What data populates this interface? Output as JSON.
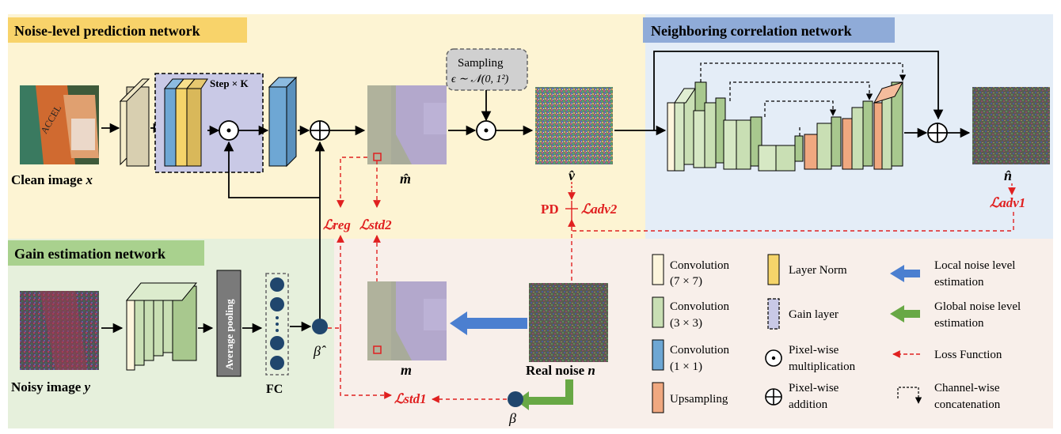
{
  "sections": {
    "noise_level": "Noise-level prediction network",
    "neighboring": "Neighboring correlation network",
    "gain": "Gain estimation network"
  },
  "labels": {
    "step_k": "Step × K",
    "clean_image": "Clean image",
    "clean_var": "x",
    "noisy_image": "Noisy image",
    "noisy_var": "y",
    "m_hat": "m̂",
    "v_hat": "v̂",
    "n_hat": "n̂",
    "m": "m",
    "real_noise": "Real noise",
    "real_noise_var": "n",
    "beta_hat": "β̂",
    "beta": "β",
    "fc": "FC",
    "avg_pool": "Average pooling",
    "sampling_title": "Sampling",
    "sampling_formula": "ϵ ∼ 𝒩(0, 1²)",
    "pd": "PD",
    "l_adv2": "ℒadv2",
    "l_adv1": "ℒadv1",
    "l_reg": "ℒreg",
    "l_std2": "ℒstd2",
    "l_std1": "ℒstd1"
  },
  "legend": {
    "conv7_a": "Convolution",
    "conv7_b": "(7 × 7)",
    "conv3_a": "Convolution",
    "conv3_b": "(3 × 3)",
    "conv1_a": "Convolution",
    "conv1_b": "(1 × 1)",
    "upsampling": "Upsampling",
    "layer_norm": "Layer Norm",
    "gain_layer": "Gain layer",
    "pixel_mult_a": "Pixel-wise",
    "pixel_mult_b": "multiplication",
    "pixel_add_a": "Pixel-wise",
    "pixel_add_b": "addition",
    "local_a": "Local noise level",
    "local_b": "estimation",
    "global_a": "Global noise level",
    "global_b": "estimation",
    "loss": "Loss Function",
    "concat_a": "Channel-wise",
    "concat_b": "concatenation"
  },
  "colors": {
    "yellow_bg": "#fdf4d3",
    "blue_bg": "#e4edf7",
    "green_bg": "#e6f0dc",
    "pink_bg": "#f8efea",
    "conv7": "#fdf5dc",
    "conv3": "#c9dfb4",
    "conv1": "#6ea7d4",
    "upsample": "#f0a880",
    "layernorm": "#f5d46a",
    "gainlayer": "#c9c9e6",
    "loss_red": "#e02020",
    "blue_arrow": "#4b7fd0",
    "green_arrow": "#68a845",
    "dot": "#20466d"
  }
}
